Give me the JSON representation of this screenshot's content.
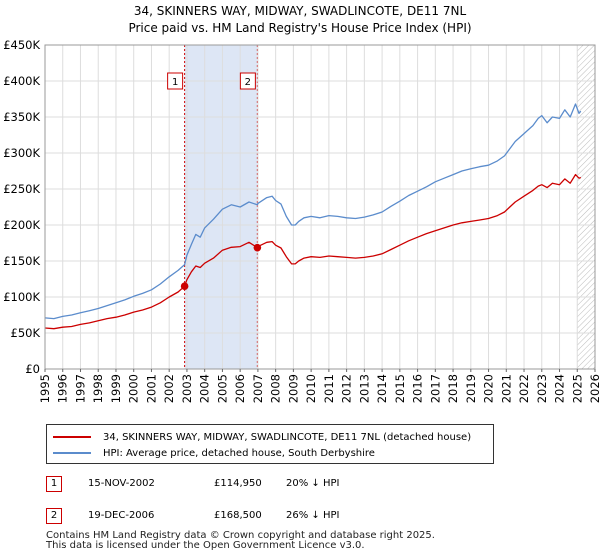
{
  "title": {
    "line1": "34, SKINNERS WAY, MIDWAY, SWADLINCOTE, DE11 7NL",
    "line2": "Price paid vs. HM Land Registry's House Price Index (HPI)"
  },
  "chart_data": {
    "type": "line",
    "x_ticks": [
      "1995",
      "1996",
      "1997",
      "1998",
      "1999",
      "2000",
      "2001",
      "2002",
      "2003",
      "2004",
      "2005",
      "2006",
      "2007",
      "2008",
      "2009",
      "2010",
      "2011",
      "2012",
      "2013",
      "2014",
      "2015",
      "2016",
      "2017",
      "2018",
      "2019",
      "2020",
      "2021",
      "2022",
      "2023",
      "2024",
      "2025",
      "2026"
    ],
    "y_ticks": [
      "£0",
      "£50K",
      "£100K",
      "£150K",
      "£200K",
      "£250K",
      "£300K",
      "£350K",
      "£400K",
      "£450K"
    ],
    "xlim": [
      1995,
      2026
    ],
    "ylim": [
      0,
      450000
    ],
    "grid": true,
    "shaded_period": [
      2002.87,
      2006.97
    ],
    "hatched_from": 2025.0,
    "colors": {
      "property": "#cc0000",
      "hpi": "#5b8ccc",
      "shade": "#dde6f5",
      "grid": "#dddddd"
    },
    "series": [
      {
        "name": "34, SKINNERS WAY, MIDWAY, SWADLINCOTE, DE11 7NL (detached house)",
        "color": "#cc0000",
        "x": [
          1995.0,
          1995.5,
          1996.0,
          1996.5,
          1997.0,
          1997.5,
          1998.0,
          1998.5,
          1999.0,
          1999.5,
          2000.0,
          2000.5,
          2001.0,
          2001.5,
          2002.0,
          2002.5,
          2002.87,
          2003.0,
          2003.25,
          2003.5,
          2003.75,
          2004.0,
          2004.5,
          2005.0,
          2005.5,
          2006.0,
          2006.5,
          2006.97,
          2007.0,
          2007.5,
          2007.8,
          2008.0,
          2008.3,
          2008.6,
          2008.9,
          2009.1,
          2009.3,
          2009.6,
          2010.0,
          2010.5,
          2011.0,
          2011.5,
          2012.0,
          2012.5,
          2013.0,
          2013.5,
          2014.0,
          2014.5,
          2015.0,
          2015.5,
          2016.0,
          2016.5,
          2017.0,
          2017.5,
          2018.0,
          2018.5,
          2019.0,
          2019.5,
          2020.0,
          2020.5,
          2020.9,
          2021.2,
          2021.5,
          2022.0,
          2022.5,
          2022.8,
          2023.0,
          2023.3,
          2023.6,
          2024.0,
          2024.3,
          2024.6,
          2024.9,
          2025.1,
          2025.2
        ],
        "y": [
          57000,
          56000,
          58000,
          59000,
          62000,
          64000,
          67000,
          70000,
          72000,
          75000,
          79000,
          82000,
          86000,
          92000,
          100000,
          107000,
          114950,
          124000,
          135000,
          143000,
          141000,
          147000,
          154000,
          165000,
          169000,
          170000,
          176000,
          168500,
          170000,
          176000,
          177000,
          172000,
          168000,
          156000,
          146000,
          146000,
          150000,
          154000,
          156000,
          155000,
          157000,
          156000,
          155000,
          154000,
          155000,
          157000,
          160000,
          166000,
          172000,
          178000,
          183000,
          188000,
          192000,
          196000,
          200000,
          203000,
          205000,
          207000,
          209000,
          213000,
          218000,
          225000,
          232000,
          240000,
          248000,
          254000,
          256000,
          252000,
          258000,
          256000,
          264000,
          258000,
          270000,
          265000,
          266000
        ]
      },
      {
        "name": "HPI: Average price, detached house, South Derbyshire",
        "color": "#5b8ccc",
        "x": [
          1995.0,
          1995.5,
          1996.0,
          1996.5,
          1997.0,
          1997.5,
          1998.0,
          1998.5,
          1999.0,
          1999.5,
          2000.0,
          2000.5,
          2001.0,
          2001.5,
          2002.0,
          2002.5,
          2002.87,
          2003.0,
          2003.25,
          2003.5,
          2003.75,
          2004.0,
          2004.5,
          2005.0,
          2005.5,
          2006.0,
          2006.5,
          2006.97,
          2007.0,
          2007.5,
          2007.8,
          2008.0,
          2008.3,
          2008.6,
          2008.9,
          2009.1,
          2009.3,
          2009.6,
          2010.0,
          2010.5,
          2011.0,
          2011.5,
          2012.0,
          2012.5,
          2013.0,
          2013.5,
          2014.0,
          2014.5,
          2015.0,
          2015.5,
          2016.0,
          2016.5,
          2017.0,
          2017.5,
          2018.0,
          2018.5,
          2019.0,
          2019.5,
          2020.0,
          2020.5,
          2020.9,
          2021.2,
          2021.5,
          2022.0,
          2022.5,
          2022.8,
          2023.0,
          2023.3,
          2023.6,
          2024.0,
          2024.3,
          2024.6,
          2024.9,
          2025.1,
          2025.2
        ],
        "y": [
          71000,
          70000,
          73000,
          75000,
          78000,
          81000,
          84000,
          88000,
          92000,
          96000,
          101000,
          105000,
          110000,
          118000,
          128000,
          137000,
          145000,
          158000,
          173000,
          187000,
          183000,
          196000,
          208000,
          222000,
          228000,
          225000,
          232000,
          228000,
          230000,
          238000,
          240000,
          234000,
          229000,
          212000,
          200000,
          200000,
          205000,
          210000,
          212000,
          210000,
          213000,
          212000,
          210000,
          209000,
          211000,
          214000,
          218000,
          226000,
          233000,
          241000,
          247000,
          253000,
          260000,
          265000,
          270000,
          275000,
          278000,
          281000,
          283000,
          289000,
          296000,
          306000,
          316000,
          327000,
          338000,
          348000,
          352000,
          342000,
          350000,
          348000,
          360000,
          350000,
          368000,
          355000,
          358000
        ]
      }
    ],
    "markers": [
      {
        "label": "1",
        "x": 2002.87,
        "y": 114950,
        "box_y": 400000
      },
      {
        "label": "2",
        "x": 2006.97,
        "y": 168500,
        "box_y": 400000
      }
    ]
  },
  "legend": {
    "property_label": "34, SKINNERS WAY, MIDWAY, SWADLINCOTE, DE11 7NL (detached house)",
    "hpi_label": "HPI: Average price, detached house, South Derbyshire"
  },
  "sales": [
    {
      "num": "1",
      "date": "15-NOV-2002",
      "price": "£114,950",
      "hpi": "20% ↓ HPI"
    },
    {
      "num": "2",
      "date": "19-DEC-2006",
      "price": "£168,500",
      "hpi": "26% ↓ HPI"
    }
  ],
  "footer": {
    "line1": "Contains HM Land Registry data © Crown copyright and database right 2025.",
    "line2": "This data is licensed under the Open Government Licence v3.0."
  }
}
